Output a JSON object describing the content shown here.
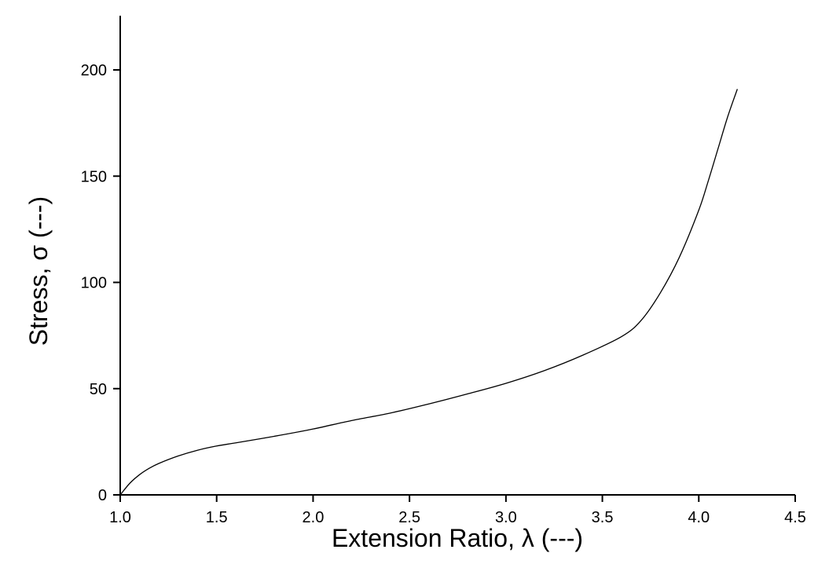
{
  "chart_data": {
    "type": "line",
    "title": "",
    "xlabel": "Extension Ratio,  λ  (---)",
    "ylabel": "Stress,  σ  (---)",
    "xlim": [
      1.0,
      4.5
    ],
    "ylim": [
      0,
      225
    ],
    "xticks": [
      1.0,
      1.5,
      2.0,
      2.5,
      3.0,
      3.5,
      4.0,
      4.5
    ],
    "xtick_labels": [
      "1.0",
      "1.5",
      "2.0",
      "2.5",
      "3.0",
      "3.5",
      "4.0",
      "4.5"
    ],
    "yticks": [
      0,
      50,
      100,
      150,
      200
    ],
    "ytick_labels": [
      "0",
      "50",
      "100",
      "150",
      "200"
    ],
    "grid": false,
    "legend": "none",
    "line_color": "#000000",
    "series": [
      {
        "x": [
          1.0,
          1.05,
          1.1,
          1.15,
          1.2,
          1.3,
          1.4,
          1.5,
          1.6,
          1.8,
          2.0,
          2.2,
          2.4,
          2.6,
          2.8,
          3.0,
          3.2,
          3.4,
          3.6,
          3.7,
          3.8,
          3.9,
          4.0,
          4.05,
          4.1,
          4.15,
          4.2
        ],
        "y": [
          0,
          5.5,
          9.5,
          12.5,
          14.8,
          18.3,
          21.0,
          23.0,
          24.5,
          27.6,
          31.0,
          35.0,
          38.5,
          42.8,
          47.5,
          52.5,
          58.5,
          65.8,
          74.5,
          82.0,
          95.0,
          112.0,
          134.0,
          148.0,
          163.0,
          178.0,
          191.0
        ]
      }
    ]
  }
}
